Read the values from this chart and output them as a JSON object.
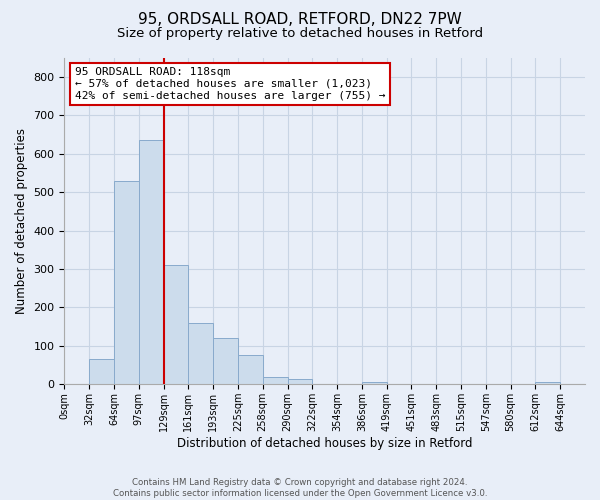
{
  "title1": "95, ORDSALL ROAD, RETFORD, DN22 7PW",
  "title2": "Size of property relative to detached houses in Retford",
  "xlabel": "Distribution of detached houses by size in Retford",
  "ylabel": "Number of detached properties",
  "bar_labels": [
    "0sqm",
    "32sqm",
    "64sqm",
    "97sqm",
    "129sqm",
    "161sqm",
    "193sqm",
    "225sqm",
    "258sqm",
    "290sqm",
    "322sqm",
    "354sqm",
    "386sqm",
    "419sqm",
    "451sqm",
    "483sqm",
    "515sqm",
    "547sqm",
    "580sqm",
    "612sqm",
    "644sqm"
  ],
  "bar_heights": [
    0,
    65,
    530,
    635,
    310,
    160,
    120,
    75,
    20,
    15,
    0,
    0,
    5,
    0,
    0,
    0,
    0,
    0,
    0,
    5,
    0
  ],
  "bar_color": "#ccdcec",
  "bar_edge_color": "#88aacc",
  "grid_color": "#c8d4e4",
  "background_color": "#e8eef8",
  "vline_color": "#cc0000",
  "annotation_text": "95 ORDSALL ROAD: 118sqm\n← 57% of detached houses are smaller (1,023)\n42% of semi-detached houses are larger (755) →",
  "annotation_box_color": "#ffffff",
  "annotation_border_color": "#cc0000",
  "ylim": [
    0,
    850
  ],
  "yticks": [
    0,
    100,
    200,
    300,
    400,
    500,
    600,
    700,
    800
  ],
  "footnote": "Contains HM Land Registry data © Crown copyright and database right 2024.\nContains public sector information licensed under the Open Government Licence v3.0.",
  "title1_fontsize": 11,
  "title2_fontsize": 9.5,
  "axis_label_fontsize": 8.5,
  "tick_fontsize": 8
}
